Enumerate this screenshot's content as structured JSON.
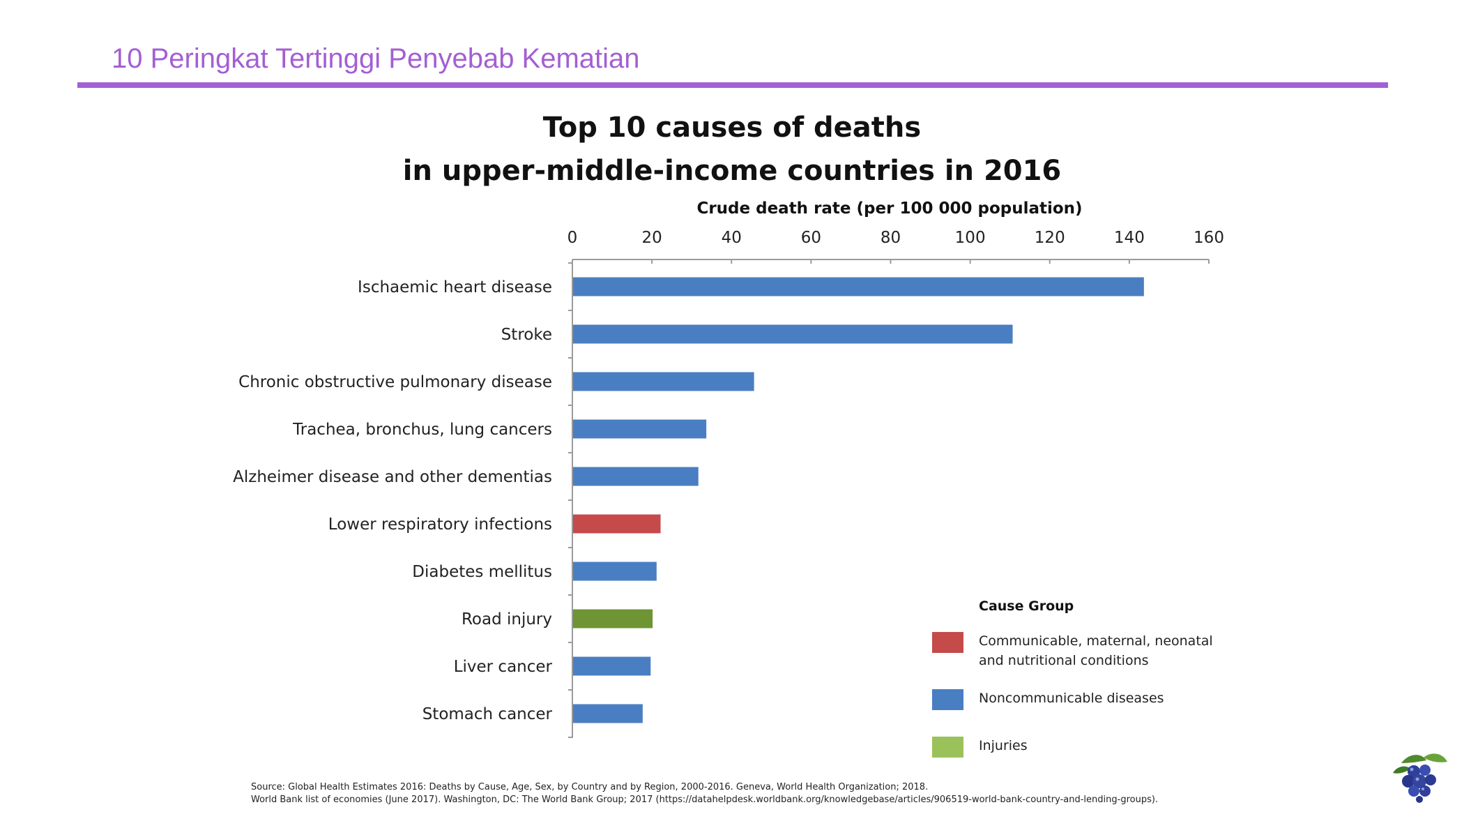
{
  "page": {
    "title": "10 Peringkat Tertinggi Penyebab Kematian"
  },
  "colors": {
    "accent": "#a35fd3",
    "communicable": "#c54a4a",
    "noncommunicable": "#4a7ec2",
    "injuries_bar": "#6f9433",
    "injuries_legend": "#9bc15a"
  },
  "chart_data": {
    "type": "bar",
    "orientation": "horizontal",
    "title_line1": "Top 10 causes of deaths",
    "title_line2": "in upper-middle-income countries in 2016",
    "xlabel": "Crude death rate (per 100 000 population)",
    "ylabel": "",
    "xlim": [
      0,
      160
    ],
    "xticks": [
      "0",
      "20",
      "40",
      "60",
      "80",
      "100",
      "120",
      "140",
      "160"
    ],
    "x_axis_position": "top",
    "grid": false,
    "categories": [
      "Ischaemic heart disease",
      "Stroke",
      "Chronic obstructive pulmonary disease",
      "Trachea, bronchus, lung cancers",
      "Alzheimer disease and other dementias",
      "Lower respiratory infections",
      "Diabetes mellitus",
      "Road injury",
      "Liver cancer",
      "Stomach cancer"
    ],
    "values": [
      143.5,
      110.5,
      45.5,
      33.5,
      31.5,
      22,
      21,
      20,
      19.5,
      17.5
    ],
    "groups": [
      "noncommunicable",
      "noncommunicable",
      "noncommunicable",
      "noncommunicable",
      "noncommunicable",
      "communicable",
      "noncommunicable",
      "injuries",
      "noncommunicable",
      "noncommunicable"
    ],
    "legend": {
      "title": "Cause Group",
      "placement": "bottom-right",
      "items": [
        {
          "group": "communicable",
          "line1": "Communicable, maternal, neonatal",
          "line2": "and nutritional conditions"
        },
        {
          "group": "noncommunicable",
          "line1": "Noncommunicable diseases",
          "line2": ""
        },
        {
          "group": "injuries",
          "line1": "Injuries",
          "line2": ""
        }
      ]
    },
    "source_line1": "Source: Global Health Estimates 2016: Deaths by Cause, Age, Sex, by Country and by Region, 2000-2016. Geneva, World Health Organization; 2018.",
    "source_line2": "World Bank list of economies (June 2017). Washington, DC: The World Bank Group; 2017 (https://datahelpdesk.worldbank.org/knowledgebase/articles/906519-world-bank-country-and-lending-groups)."
  },
  "logo": {
    "icon": "blueberry-cluster-icon"
  }
}
